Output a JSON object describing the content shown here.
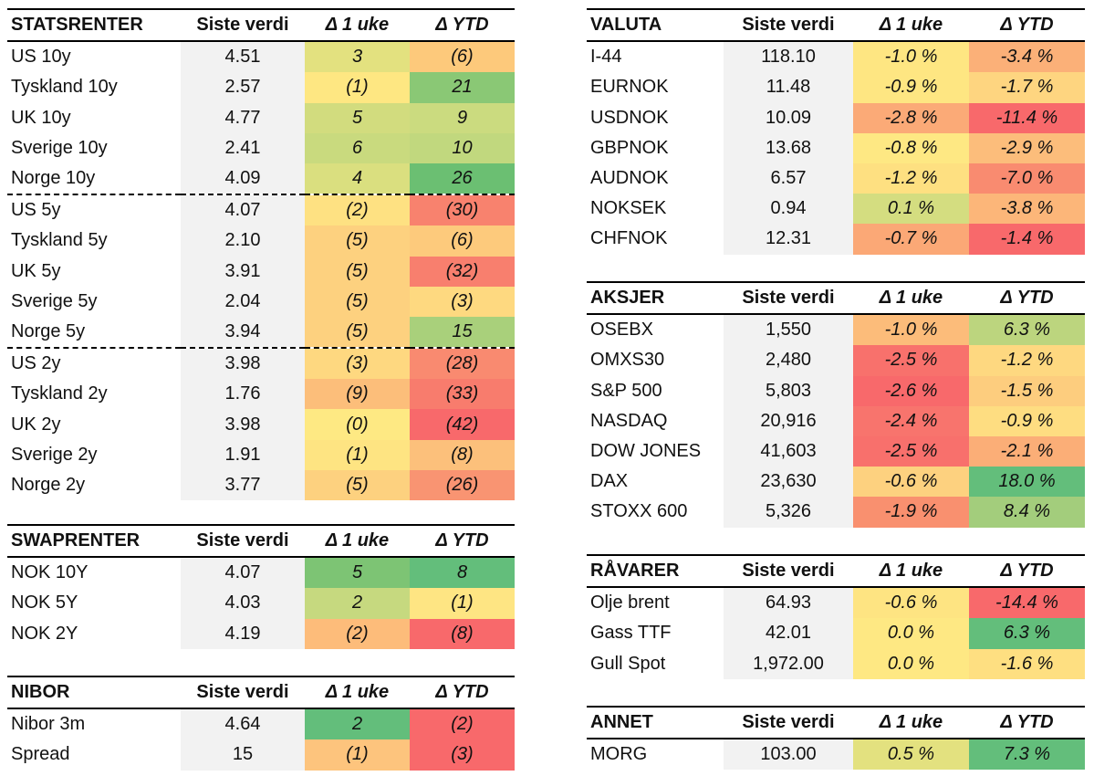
{
  "columns": {
    "value": "Siste verdi",
    "week": "Δ 1 uke",
    "ytd": "Δ YTD"
  },
  "tables": [
    {
      "id": "statsrenter",
      "title": "STATSRENTER",
      "rows": [
        {
          "name": "US 10y",
          "value": "4.51",
          "week": "3",
          "ytd": "(6)",
          "week_bg": "#e3e17f",
          "ytd_bg": "#fdc97b"
        },
        {
          "name": "Tyskland 10y",
          "value": "2.57",
          "week": "(1)",
          "ytd": "21",
          "week_bg": "#fee782",
          "ytd_bg": "#8ac875"
        },
        {
          "name": "UK 10y",
          "value": "4.77",
          "week": "5",
          "ytd": "9",
          "week_bg": "#d2dc7e",
          "ytd_bg": "#cbdb7f"
        },
        {
          "name": "Sverige 10y",
          "value": "2.41",
          "week": "6",
          "ytd": "10",
          "week_bg": "#c9da7e",
          "ytd_bg": "#c1d87e"
        },
        {
          "name": "Norge 10y",
          "value": "4.09",
          "week": "4",
          "ytd": "26",
          "week_bg": "#dadf7f",
          "ytd_bg": "#6bbf72"
        },
        {
          "name": "US 5y",
          "value": "4.07",
          "week": "(2)",
          "ytd": "(30)",
          "week_bg": "#fee182",
          "ytd_bg": "#f8826e",
          "sep": true
        },
        {
          "name": "Tyskland 5y",
          "value": "2.10",
          "week": "(5)",
          "ytd": "(6)",
          "week_bg": "#fdd17f",
          "ytd_bg": "#fdca7c"
        },
        {
          "name": "UK 5y",
          "value": "3.91",
          "week": "(5)",
          "ytd": "(32)",
          "week_bg": "#fdd17f",
          "ytd_bg": "#f87f6e"
        },
        {
          "name": "Sverige 5y",
          "value": "2.04",
          "week": "(5)",
          "ytd": "(3)",
          "week_bg": "#fdd17f",
          "ytd_bg": "#fed980"
        },
        {
          "name": "Norge 5y",
          "value": "3.94",
          "week": "(5)",
          "ytd": "15",
          "week_bg": "#fdd17f",
          "ytd_bg": "#a9d07b"
        },
        {
          "name": "US 2y",
          "value": "3.98",
          "week": "(3)",
          "ytd": "(28)",
          "week_bg": "#fed880",
          "ytd_bg": "#f98a70",
          "sep": true
        },
        {
          "name": "Tyskland 2y",
          "value": "1.76",
          "week": "(9)",
          "ytd": "(33)",
          "week_bg": "#fcbe7a",
          "ytd_bg": "#f87c6d"
        },
        {
          "name": "UK 2y",
          "value": "3.98",
          "week": "(0)",
          "ytd": "(42)",
          "week_bg": "#fee983",
          "ytd_bg": "#f8696b"
        },
        {
          "name": "Sverige 2y",
          "value": "1.91",
          "week": "(1)",
          "ytd": "(8)",
          "week_bg": "#fee482",
          "ytd_bg": "#fcc07b"
        },
        {
          "name": "Norge 2y",
          "value": "3.77",
          "week": "(5)",
          "ytd": "(26)",
          "week_bg": "#fdd17f",
          "ytd_bg": "#f99472"
        }
      ]
    },
    {
      "id": "swaprenter",
      "title": "SWAPRENTER",
      "rows": [
        {
          "name": "NOK 10Y",
          "value": "4.07",
          "week": "5",
          "ytd": "8",
          "week_bg": "#7dc474",
          "ytd_bg": "#63be7b"
        },
        {
          "name": "NOK 5Y",
          "value": "4.03",
          "week": "2",
          "ytd": "(1)",
          "week_bg": "#c6d97f",
          "ytd_bg": "#fee583"
        },
        {
          "name": "NOK 2Y",
          "value": "4.19",
          "week": "(2)",
          "ytd": "(8)",
          "week_bg": "#fdbc7a",
          "ytd_bg": "#f8696b"
        }
      ]
    },
    {
      "id": "nibor",
      "title": "NIBOR",
      "rows": [
        {
          "name": "Nibor 3m",
          "value": "4.64",
          "week": "2",
          "ytd": "(2)",
          "week_bg": "#63be7b",
          "ytd_bg": "#f8696b"
        },
        {
          "name": "Spread",
          "value": "15",
          "week": "(1)",
          "ytd": "(3)",
          "week_bg": "#fdc47d",
          "ytd_bg": "#f8696b"
        }
      ]
    },
    {
      "id": "valuta",
      "title": "VALUTA",
      "rows": [
        {
          "name": "I-44",
          "value": "118.10",
          "week": "-1.0 %",
          "ytd": "-3.4 %",
          "week_bg": "#fee682",
          "ytd_bg": "#fbb078"
        },
        {
          "name": "EURNOK",
          "value": "11.48",
          "week": "-0.9 %",
          "ytd": "-1.7 %",
          "week_bg": "#fee682",
          "ytd_bg": "#fed580"
        },
        {
          "name": "USDNOK",
          "value": "10.09",
          "week": "-2.8 %",
          "ytd": "-11.4 %",
          "week_bg": "#fbaa77",
          "ytd_bg": "#f8696b"
        },
        {
          "name": "GBPNOK",
          "value": "13.68",
          "week": "-0.8 %",
          "ytd": "-2.9 %",
          "week_bg": "#fee883",
          "ytd_bg": "#fcbd7b"
        },
        {
          "name": "AUDNOK",
          "value": "6.57",
          "week": "-1.2 %",
          "ytd": "-7.0 %",
          "week_bg": "#fee081",
          "ytd_bg": "#f98b70"
        },
        {
          "name": "NOKSEK",
          "value": "0.94",
          "week": "0.1 %",
          "ytd": "-3.8 %",
          "week_bg": "#d4dd80",
          "ytd_bg": "#fcb679"
        },
        {
          "name": "CHFNOK",
          "value": "12.31",
          "week": "-0.7 %",
          "ytd": "-1.4 %",
          "week_bg": "#fba876",
          "ytd_bg": "#f8696b"
        }
      ]
    },
    {
      "id": "aksjer",
      "title": "AKSJER",
      "rows": [
        {
          "name": "OSEBX",
          "value": "1,550",
          "week": "-1.0 %",
          "ytd": "6.3 %",
          "week_bg": "#fcbc7a",
          "ytd_bg": "#bcd57e"
        },
        {
          "name": "OMXS30",
          "value": "2,480",
          "week": "-2.5 %",
          "ytd": "-1.2 %",
          "week_bg": "#f8716c",
          "ytd_bg": "#fed880"
        },
        {
          "name": "S&P 500",
          "value": "5,803",
          "week": "-2.6 %",
          "ytd": "-1.5 %",
          "week_bg": "#f8696b",
          "ytd_bg": "#fdcd7e"
        },
        {
          "name": "NASDAQ",
          "value": "20,916",
          "week": "-2.4 %",
          "ytd": "-0.9 %",
          "week_bg": "#f8746d",
          "ytd_bg": "#fedd81"
        },
        {
          "name": "DOW JONES",
          "value": "41,603",
          "week": "-2.5 %",
          "ytd": "-2.1 %",
          "week_bg": "#f8706c",
          "ytd_bg": "#fbae77"
        },
        {
          "name": "DAX",
          "value": "23,630",
          "week": "-0.6 %",
          "ytd": "18.0 %",
          "week_bg": "#fdd17f",
          "ytd_bg": "#63be7b"
        },
        {
          "name": "STOXX 600",
          "value": "5,326",
          "week": "-1.9 %",
          "ytd": "8.4 %",
          "week_bg": "#f9906f",
          "ytd_bg": "#a3cd7c"
        }
      ]
    },
    {
      "id": "ravarer",
      "title": "RÅVARER",
      "rows": [
        {
          "name": "Olje brent",
          "value": "64.93",
          "week": "-0.6 %",
          "ytd": "-14.4 %",
          "week_bg": "#fee482",
          "ytd_bg": "#f8696b"
        },
        {
          "name": "Gass TTF",
          "value": "42.01",
          "week": "0.0 %",
          "ytd": "6.3 %",
          "week_bg": "#fee883",
          "ytd_bg": "#63be7b"
        },
        {
          "name": "Gull Spot",
          "value": "1,972.00",
          "week": "0.0 %",
          "ytd": "-1.6 %",
          "week_bg": "#fee883",
          "ytd_bg": "#fedf81"
        }
      ]
    },
    {
      "id": "annet",
      "title": "ANNET",
      "rows": [
        {
          "name": "MORG",
          "value": "103.00",
          "week": "0.5 %",
          "ytd": "7.3 %",
          "week_bg": "#e3e17f",
          "ytd_bg": "#63be7b"
        }
      ]
    }
  ]
}
